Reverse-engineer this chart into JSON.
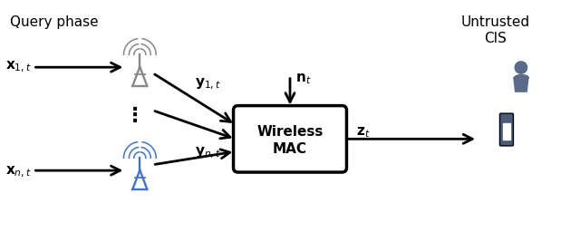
{
  "bg_color": "#ffffff",
  "title_text": "Query phase",
  "untrusted_text": "Untrusted\nCIS",
  "box_label": "Wireless\nMAC",
  "arrow_color": "#000000",
  "box_color": "#000000",
  "box_fill": "#ffffff",
  "gray_tower_color": "#808080",
  "blue_tower_color": "#4472c4",
  "person_color": "#5a6a8a",
  "phone_color": "#4a5a7a",
  "label_x1t": "$\\mathbf{x}_{1,t}$",
  "label_xnt": "$\\mathbf{x}_{n,t}$",
  "label_y1t": "$\\mathbf{y}_{1,t}$",
  "label_ynt": "$\\mathbf{y}_{n,t}$",
  "label_nt": "$\\mathbf{n}_{t}$",
  "label_zt": "$\\mathbf{z}_{t}$",
  "dots": "⋮"
}
